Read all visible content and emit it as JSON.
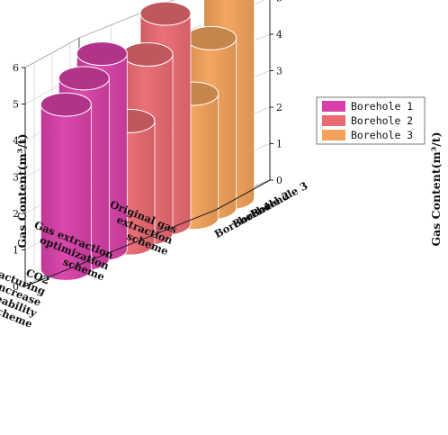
{
  "chart_data": {
    "type": "bar",
    "variant": "3d-cylinder",
    "categories": [
      [
        "Original gas",
        "extraction",
        "scheme"
      ],
      [
        "Gas extraction",
        "optimization",
        "scheme"
      ],
      [
        "CO2",
        "fracturing",
        "increase",
        "permeability",
        "scheme"
      ]
    ],
    "series": [
      {
        "name": "Borehole 1",
        "axis_label": "Borehole 1",
        "color": "#d83fa8",
        "values": [
          5.35,
          4.95,
          4.5
        ]
      },
      {
        "name": "Borehole 2",
        "axis_label": "Borehole 2",
        "color": "#ea6a72",
        "values": [
          5.75,
          4.9,
          3.35
        ]
      },
      {
        "name": "Borehole 3",
        "axis_label": "Borehole 3",
        "color": "#f2a25a",
        "values": [
          6.3,
          4.65,
          3.4
        ]
      }
    ],
    "ylabel": "Gas Content(m³/t)",
    "ylim": [
      0,
      6
    ],
    "yticks": [
      "0",
      "1",
      "2",
      "3",
      "4",
      "5",
      "6"
    ],
    "grid": true,
    "legend_position": "top-right"
  }
}
